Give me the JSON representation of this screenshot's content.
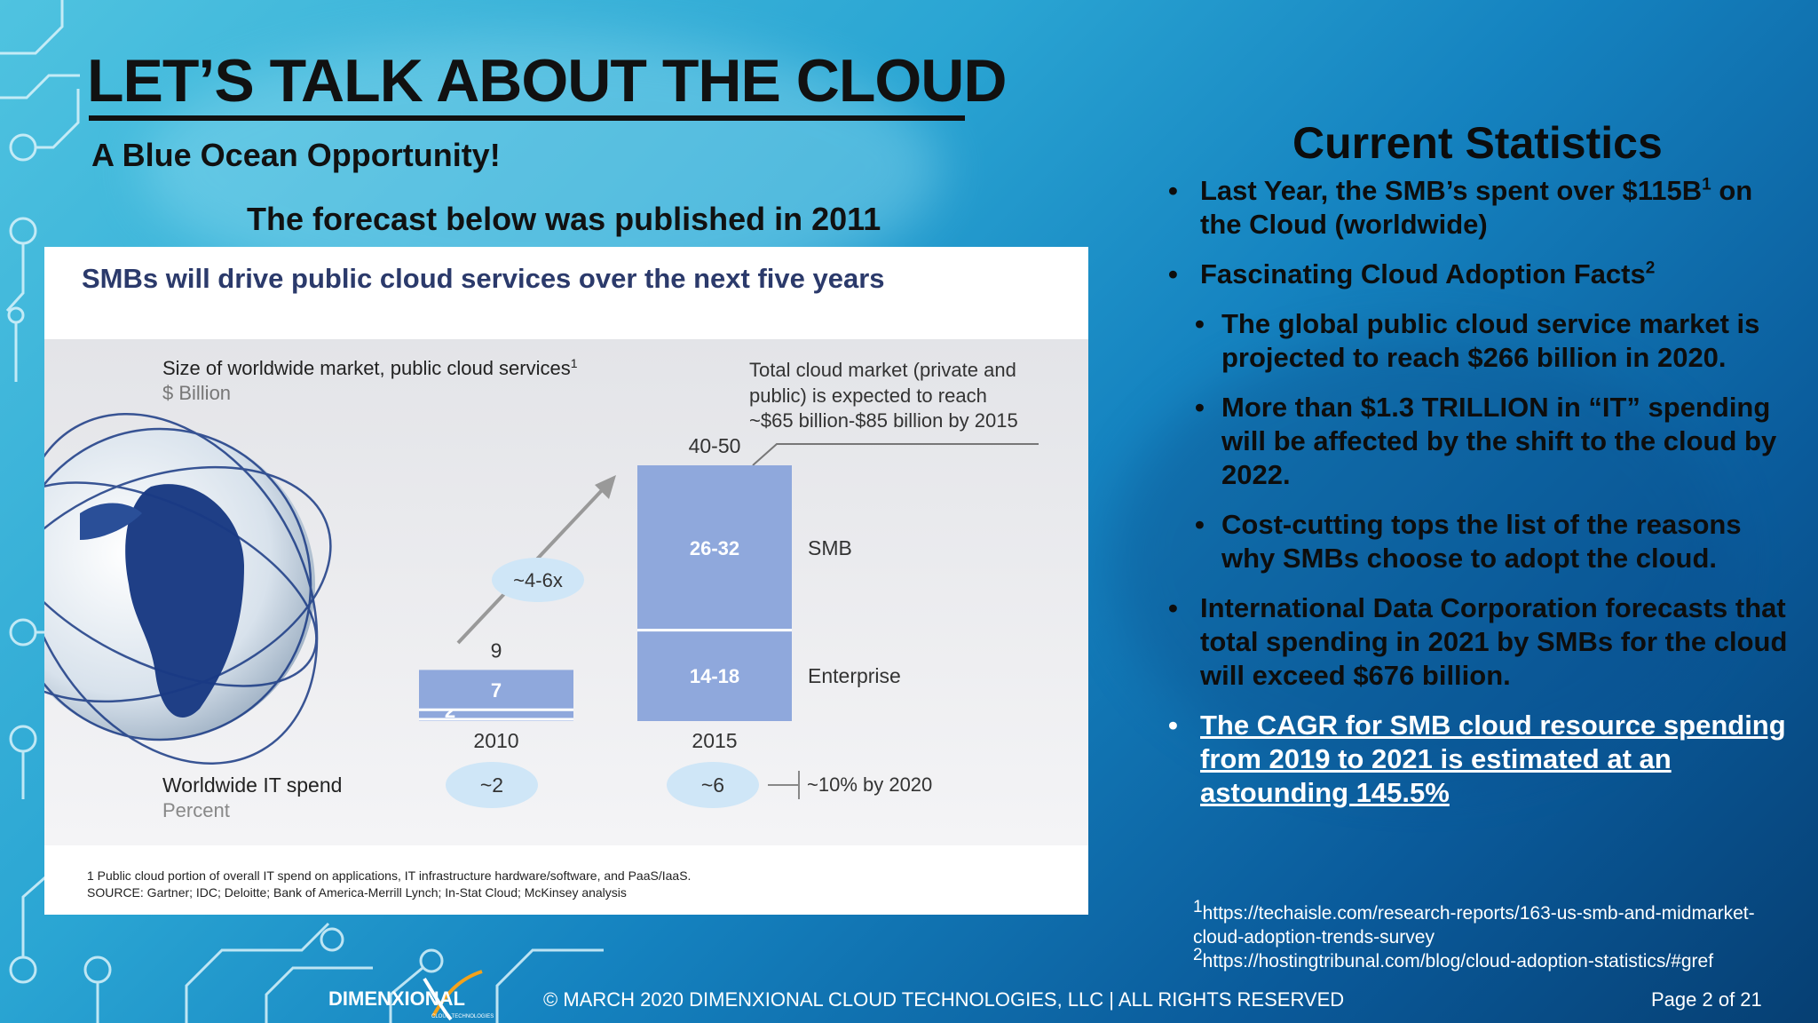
{
  "slide": {
    "title": "LET’S TALK ABOUT THE CLOUD",
    "subtitle": "A Blue Ocean Opportunity!",
    "forecast_note": "The forecast below was published in 2011"
  },
  "chart_panel": {
    "heading": "SMBs will drive public cloud services over the next five years",
    "market_label": "Size of worldwide market, public cloud services",
    "market_label_sup": "1",
    "market_unit": "$ Billion",
    "callout_lines": [
      "Total cloud market (private and",
      "public) is expected to reach",
      "~$65 billion-$85 billion by 2015"
    ],
    "multiplier_label": "~4-6x",
    "it_spend_label": "Worldwide IT spend",
    "it_spend_unit": "Percent",
    "it_spend_2020": "~10% by 2020",
    "footnotes": [
      "1  Public cloud portion of overall IT spend on applications, IT infrastructure hardware/software, and PaaS/IaaS.",
      "SOURCE: Gartner; IDC; Deloitte; Bank of America-Merrill Lynch; In-Stat Cloud; McKinsey analysis"
    ]
  },
  "chart_data": {
    "type": "bar",
    "stacked": true,
    "categories": [
      "2010",
      "2015"
    ],
    "series": [
      {
        "name": "Enterprise",
        "values": [
          2,
          16
        ],
        "labels": [
          "2",
          "14-18"
        ]
      },
      {
        "name": "SMB",
        "values": [
          7,
          29
        ],
        "labels": [
          "7",
          "26-32"
        ]
      }
    ],
    "totals": [
      "9",
      "40-50"
    ],
    "it_spend_percent": [
      "~2",
      "~6"
    ],
    "bar_color": "#8fa8dc",
    "ylabel": "$ Billion"
  },
  "stats": {
    "title": "Current Statistics",
    "bullets": [
      {
        "text": "Last Year, the SMB’s spent over $115B",
        "sup": "1",
        "tail": " on the Cloud (worldwide)"
      },
      {
        "text": "Fascinating Cloud Adoption Facts",
        "sup": "2",
        "tail": ""
      },
      {
        "text": "The global public cloud service market is projected to reach $266 billion in 2020."
      },
      {
        "text": "More than $1.3 TRILLION in “IT” spending will be affected by the shift to the cloud by 2022."
      },
      {
        "text": "Cost-cutting tops the list of the reasons why SMBs choose to adopt the cloud."
      },
      {
        "text": "International Data Corporation forecasts that total spending in 2021 by SMBs for the cloud will exceed $676 billion."
      },
      {
        "text": "The CAGR for SMB cloud resource spending from 2019 to 2021 is estimated at an astounding 145.5%"
      }
    ]
  },
  "references": [
    {
      "num": "1",
      "url": "https://techaisle.com/research-reports/163-us-smb-and-midmarket-cloud-adoption-trends-survey"
    },
    {
      "num": "2",
      "url": "https://hostingtribunal.com/blog/cloud-adoption-statistics/#gref"
    }
  ],
  "footer": {
    "logo_text": "DIMENXIONAL",
    "logo_sub": "CLOUD TECHNOLOGIES",
    "copyright": "© MARCH 2020 DIMENXIONAL CLOUD TECHNOLOGIES, LLC | ALL RIGHTS RESERVED",
    "page": "Page 2 of 21"
  },
  "colors": {
    "accent": "#1e88c8",
    "bar": "#8fa8dc",
    "ellipse": "#cfe6f7",
    "heading": "#2b3a6b"
  }
}
